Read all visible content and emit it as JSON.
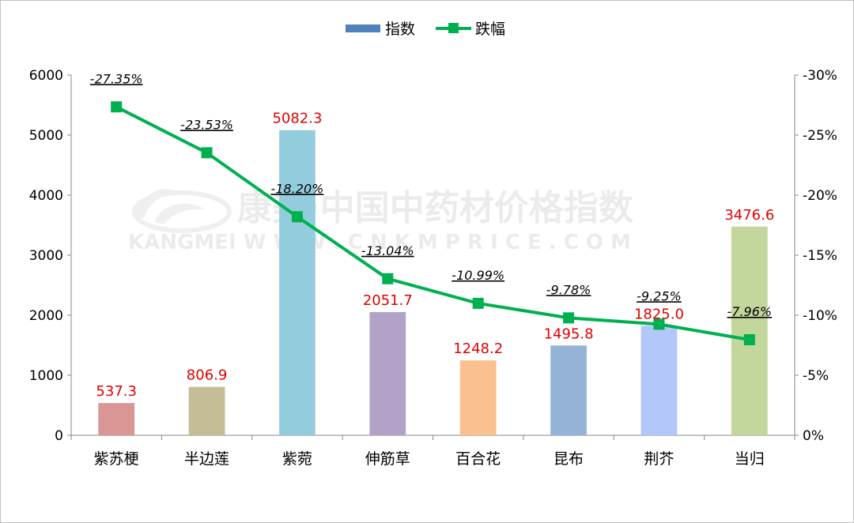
{
  "chart_data": {
    "type": "bar",
    "categories": [
      "紫苏梗",
      "半边莲",
      "紫菀",
      "伸筋草",
      "百合花",
      "昆布",
      "荆芥",
      "当归"
    ],
    "series": [
      {
        "name": "指数",
        "type": "bar",
        "axis": "left",
        "values": [
          537.3,
          806.9,
          5082.3,
          2051.7,
          1248.2,
          1495.8,
          1825.0,
          3476.6
        ],
        "labels": [
          "537.3",
          "806.9",
          "5082.3",
          "2051.7",
          "1248.2",
          "1495.8",
          "1825.0",
          "3476.6"
        ],
        "colors": [
          "#d99694",
          "#c4bd97",
          "#93cddd",
          "#b3a2c7",
          "#fac090",
          "#95b3d7",
          "#b4c7fa",
          "#c3d69b"
        ],
        "label_color": "#e00000"
      },
      {
        "name": "跌幅",
        "type": "line",
        "axis": "right",
        "values": [
          -27.35,
          -23.53,
          -18.2,
          -13.04,
          -10.99,
          -9.78,
          -9.25,
          -7.96
        ],
        "labels": [
          "-27.35%",
          "-23.53%",
          "-18.20%",
          "-13.04%",
          "-10.99%",
          "-9.78%",
          "-9.25%",
          "-7.96%"
        ],
        "color": "#00b050"
      }
    ],
    "y_left": {
      "ylim": [
        0,
        6000
      ],
      "ticks": [
        0,
        1000,
        2000,
        3000,
        4000,
        5000,
        6000
      ],
      "tick_labels": [
        "0",
        "1000",
        "2000",
        "3000",
        "4000",
        "5000",
        "6000"
      ]
    },
    "y_right": {
      "ylim": [
        0,
        -30
      ],
      "reversed": true,
      "ticks": [
        0,
        -5,
        -10,
        -15,
        -20,
        -25,
        -30
      ],
      "tick_labels": [
        "0%",
        "-5%",
        "-10%",
        "-15%",
        "-20%",
        "-25%",
        "-30%"
      ]
    },
    "title": "",
    "xlabel": "",
    "ylabel": "",
    "grid": false,
    "legend_position": "top"
  },
  "watermark": {
    "line1": "康美·中国中药材价格指数",
    "line2": "KANGMEI  W W W . C N K M P R I C E . C O M"
  }
}
